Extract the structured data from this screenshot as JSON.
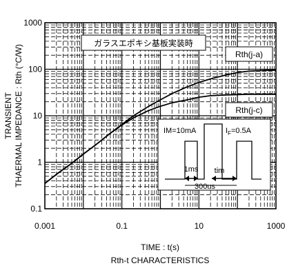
{
  "chart_data": {
    "type": "line",
    "title": "",
    "subtitle": "Rth-t CHARACTERISTICS",
    "xlabel": "TIME : t(s)",
    "ylabel_line1": "TRANSIENT",
    "ylabel_line2": "THAERMAL IMPEDANCE : Rth (°C/W)",
    "x_scale": "log",
    "y_scale": "log",
    "xlim": [
      0.001,
      1000
    ],
    "ylim": [
      0.1,
      1000
    ],
    "grid": true,
    "x_ticks": [
      0.001,
      0.1,
      10,
      1000
    ],
    "x_tick_labels": [
      "0.001",
      "0.1",
      "10",
      "1000"
    ],
    "y_ticks": [
      0.1,
      1,
      10,
      100,
      1000
    ],
    "y_tick_labels": [
      "0.1",
      "1",
      "10",
      "100",
      "1000"
    ],
    "annotation": "ガラスエポキシ基板実装時",
    "series": [
      {
        "name": "Rth(j-a)",
        "x": [
          0.001,
          0.002,
          0.005,
          0.01,
          0.02,
          0.05,
          0.1,
          0.2,
          0.5,
          1,
          2,
          5,
          10,
          20,
          50,
          100,
          200,
          500,
          1000
        ],
        "y": [
          0.35,
          0.55,
          0.95,
          1.5,
          2.3,
          4.2,
          6.5,
          10,
          16,
          22,
          30,
          42,
          52,
          62,
          75,
          85,
          91,
          94,
          95
        ]
      },
      {
        "name": "Rth(j-c)",
        "x": [
          0.001,
          0.002,
          0.005,
          0.01,
          0.02,
          0.05,
          0.1,
          0.2,
          0.5,
          1,
          2,
          5,
          10,
          20,
          50,
          100,
          200,
          500,
          1000
        ],
        "y": [
          0.35,
          0.55,
          0.95,
          1.5,
          2.3,
          4.2,
          6.3,
          9,
          13,
          16,
          19,
          22,
          25,
          27,
          28,
          28.5,
          29,
          29,
          29
        ]
      }
    ],
    "inset": {
      "im_label": "IM=10mA",
      "if_label_main": "I",
      "if_label_sub": "F",
      "if_label_value": "=0.5A",
      "t1_label": "1ms",
      "tim_label": "tim",
      "t2_label": "300us"
    }
  }
}
